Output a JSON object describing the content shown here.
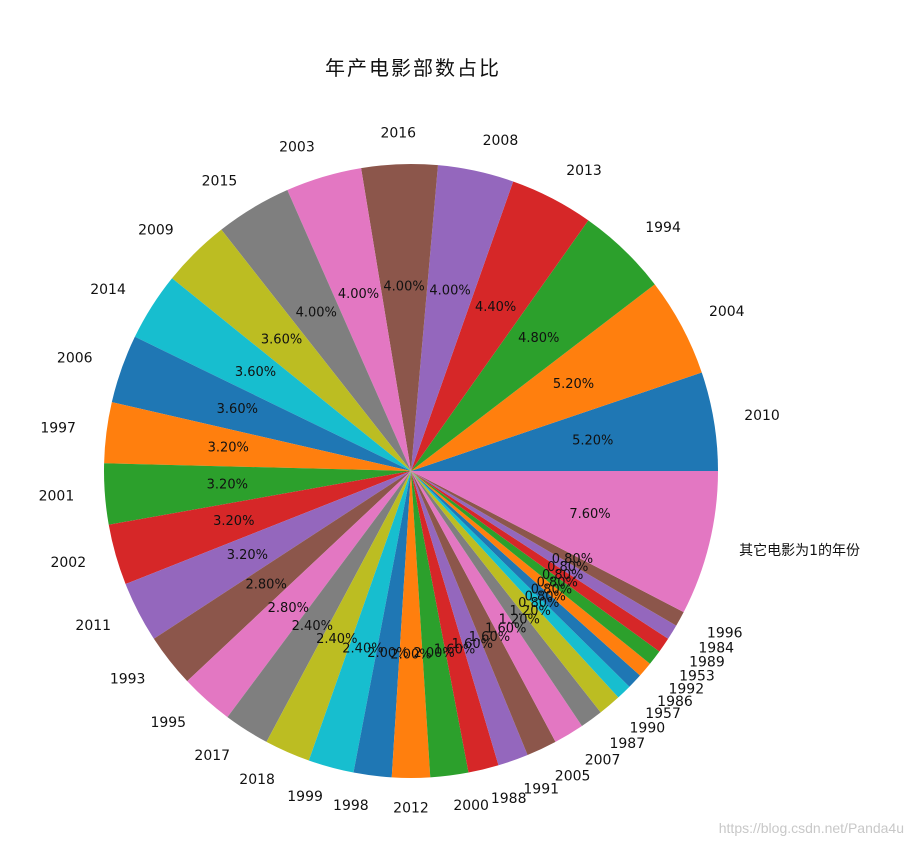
{
  "chart_data": {
    "type": "pie",
    "title": "年产电影部数占比",
    "start_angle_deg": 0,
    "direction": "counterclockwise",
    "slices": [
      {
        "label": "2010",
        "value": 5.2,
        "pct_label": "5.20%",
        "color": "#1f77b4"
      },
      {
        "label": "2004",
        "value": 5.2,
        "pct_label": "5.20%",
        "color": "#ff7f0e"
      },
      {
        "label": "1994",
        "value": 4.8,
        "pct_label": "4.80%",
        "color": "#2ca02c"
      },
      {
        "label": "2013",
        "value": 4.4,
        "pct_label": "4.40%",
        "color": "#d62728"
      },
      {
        "label": "2008",
        "value": 4.0,
        "pct_label": "4.00%",
        "color": "#9467bd"
      },
      {
        "label": "2016",
        "value": 4.0,
        "pct_label": "4.00%",
        "color": "#8c564b"
      },
      {
        "label": "2003",
        "value": 4.0,
        "pct_label": "4.00%",
        "color": "#e377c2"
      },
      {
        "label": "2015",
        "value": 4.0,
        "pct_label": "4.00%",
        "color": "#7f7f7f"
      },
      {
        "label": "2009",
        "value": 3.6,
        "pct_label": "3.60%",
        "color": "#bcbd22"
      },
      {
        "label": "2014",
        "value": 3.6,
        "pct_label": "3.60%",
        "color": "#17becf"
      },
      {
        "label": "2006",
        "value": 3.6,
        "pct_label": "3.60%",
        "color": "#1f77b4"
      },
      {
        "label": "1997",
        "value": 3.2,
        "pct_label": "3.20%",
        "color": "#ff7f0e"
      },
      {
        "label": "2001",
        "value": 3.2,
        "pct_label": "3.20%",
        "color": "#2ca02c"
      },
      {
        "label": "2002",
        "value": 3.2,
        "pct_label": "3.20%",
        "color": "#d62728"
      },
      {
        "label": "2011",
        "value": 3.2,
        "pct_label": "3.20%",
        "color": "#9467bd"
      },
      {
        "label": "1993",
        "value": 2.8,
        "pct_label": "2.80%",
        "color": "#8c564b"
      },
      {
        "label": "1995",
        "value": 2.8,
        "pct_label": "2.80%",
        "color": "#e377c2"
      },
      {
        "label": "2017",
        "value": 2.4,
        "pct_label": "2.40%",
        "color": "#7f7f7f"
      },
      {
        "label": "2018",
        "value": 2.4,
        "pct_label": "2.40%",
        "color": "#bcbd22"
      },
      {
        "label": "1999",
        "value": 2.4,
        "pct_label": "2.40%",
        "color": "#17becf"
      },
      {
        "label": "1998",
        "value": 2.0,
        "pct_label": "2.00%",
        "color": "#1f77b4"
      },
      {
        "label": "2012",
        "value": 2.0,
        "pct_label": "2.00%",
        "color": "#ff7f0e"
      },
      {
        "label": "2000",
        "value": 2.0,
        "pct_label": "2.00%",
        "color": "#2ca02c"
      },
      {
        "label": "1988",
        "value": 1.6,
        "pct_label": "1.60%",
        "color": "#d62728"
      },
      {
        "label": "1991",
        "value": 1.6,
        "pct_label": "1.60%",
        "color": "#9467bd"
      },
      {
        "label": "2005",
        "value": 1.6,
        "pct_label": "1.60%",
        "color": "#8c564b"
      },
      {
        "label": "2007",
        "value": 1.6,
        "pct_label": "1.60%",
        "color": "#e377c2"
      },
      {
        "label": "1987",
        "value": 1.2,
        "pct_label": "1.20%",
        "color": "#7f7f7f"
      },
      {
        "label": "1990",
        "value": 1.2,
        "pct_label": "1.20%",
        "color": "#bcbd22"
      },
      {
        "label": "1957",
        "value": 0.8,
        "pct_label": "0.80%",
        "color": "#17becf"
      },
      {
        "label": "1986",
        "value": 0.8,
        "pct_label": "0.80%",
        "color": "#1f77b4"
      },
      {
        "label": "1992",
        "value": 0.8,
        "pct_label": "0.80%",
        "color": "#ff7f0e"
      },
      {
        "label": "1953",
        "value": 0.8,
        "pct_label": "0.80%",
        "color": "#2ca02c"
      },
      {
        "label": "1989",
        "value": 0.8,
        "pct_label": "0.80%",
        "color": "#d62728"
      },
      {
        "label": "1984",
        "value": 0.8,
        "pct_label": "0.80%",
        "color": "#9467bd"
      },
      {
        "label": "1996",
        "value": 0.8,
        "pct_label": "0.80%",
        "color": "#8c564b"
      },
      {
        "label": "其它电影为1的年份",
        "value": 7.6,
        "pct_label": "7.60%",
        "color": "#e377c2"
      }
    ]
  },
  "watermark": "https://blog.csdn.net/Panda4u"
}
